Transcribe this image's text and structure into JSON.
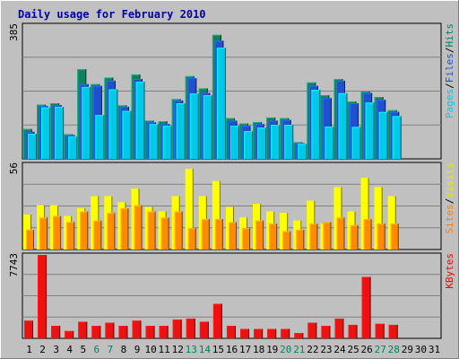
{
  "chart_data": {
    "type": "bar",
    "title": "Daily usage for February 2010",
    "days": [
      "1",
      "2",
      "3",
      "4",
      "5",
      "6",
      "7",
      "8",
      "9",
      "10",
      "11",
      "12",
      "13",
      "14",
      "15",
      "16",
      "17",
      "18",
      "19",
      "20",
      "21",
      "22",
      "23",
      "24",
      "25",
      "26",
      "27",
      "28",
      "29",
      "30",
      "31"
    ],
    "weekend_days": [
      "6",
      "7",
      "13",
      "14",
      "20",
      "21",
      "27",
      "28"
    ],
    "panels": [
      {
        "id": "top",
        "ymax_label": "385",
        "ylim": [
          0,
          385
        ],
        "legend": [
          {
            "text": "Pages",
            "color": "#00c8e8"
          },
          {
            "text": "/",
            "color": "#000000"
          },
          {
            "text": "Files",
            "color": "#2050d0"
          },
          {
            "text": "/",
            "color": "#000000"
          },
          {
            "text": "Hits",
            "color": "#008060"
          }
        ],
        "series": [
          {
            "name": "Hits",
            "color": "#108060",
            "values": [
              86,
              156,
              160,
              71,
              258,
              215,
              234,
              154,
              243,
              110,
              108,
              172,
              238,
              203,
              357,
              117,
              102,
              106,
              119,
              117,
              48,
              220,
              183,
              230,
              165,
              194,
              178,
              140,
              null,
              null,
              null
            ]
          },
          {
            "name": "Files",
            "color": "#2050d0",
            "values": [
              78,
              152,
              155,
              68,
              215,
              210,
              225,
              150,
              230,
              105,
              100,
              168,
              232,
              190,
              340,
              110,
              95,
              100,
              110,
              112,
              45,
              210,
              175,
              225,
              160,
              190,
              170,
              135,
              null,
              null,
              null
            ]
          },
          {
            "name": "Pages",
            "color": "#00c8e8",
            "values": [
              72,
              148,
              150,
              64,
              207,
              126,
              200,
              138,
              222,
              100,
              95,
              160,
              188,
              183,
              320,
              95,
              80,
              90,
              98,
              98,
              43,
              199,
              93,
              189,
              92,
              162,
              135,
              123,
              null,
              null,
              null
            ]
          }
        ]
      },
      {
        "id": "middle",
        "ymax_label": "56",
        "ylim": [
          0,
          56
        ],
        "legend": [
          {
            "text": "Sites",
            "color": "#ff8000"
          },
          {
            "text": "/",
            "color": "#000000"
          },
          {
            "text": "Visits",
            "color": "#e8e800"
          }
        ],
        "series": [
          {
            "name": "Visits",
            "color": "#ffff00",
            "values": [
              23,
              29,
              29,
              22,
              27,
              35,
              35,
              31,
              40,
              28,
              25,
              35,
              53,
              35,
              45,
              28,
              21,
              30,
              25,
              24,
              19,
              32,
              17,
              41,
              25,
              47,
              41,
              35,
              null,
              null,
              null
            ]
          },
          {
            "name": "Sites",
            "color": "#ff8c00",
            "values": [
              13,
              21,
              22,
              18,
              25,
              19,
              24,
              27,
              29,
              25,
              21,
              25,
              14,
              20,
              20,
              18,
              14,
              19,
              17,
              12,
              13,
              17,
              18,
              21,
              16,
              20,
              17,
              17,
              null,
              null,
              null
            ]
          }
        ]
      },
      {
        "id": "bottom",
        "ymax_label": "7743",
        "ylim": [
          0,
          7743
        ],
        "legend": [
          {
            "text": "KBytes",
            "color": "#ff0000"
          }
        ],
        "series": [
          {
            "name": "KBytes",
            "color": "#ee1111",
            "values": [
              1639,
              7743,
              1155,
              678,
              1542,
              1155,
              1445,
              1155,
              1639,
              1155,
              1155,
              1735,
              1832,
              1542,
              3200,
              1155,
              873,
              873,
              873,
              873,
              485,
              1445,
              1155,
              1832,
              1252,
              5691,
              1348,
              1252,
              null,
              null,
              null
            ]
          }
        ]
      }
    ]
  }
}
